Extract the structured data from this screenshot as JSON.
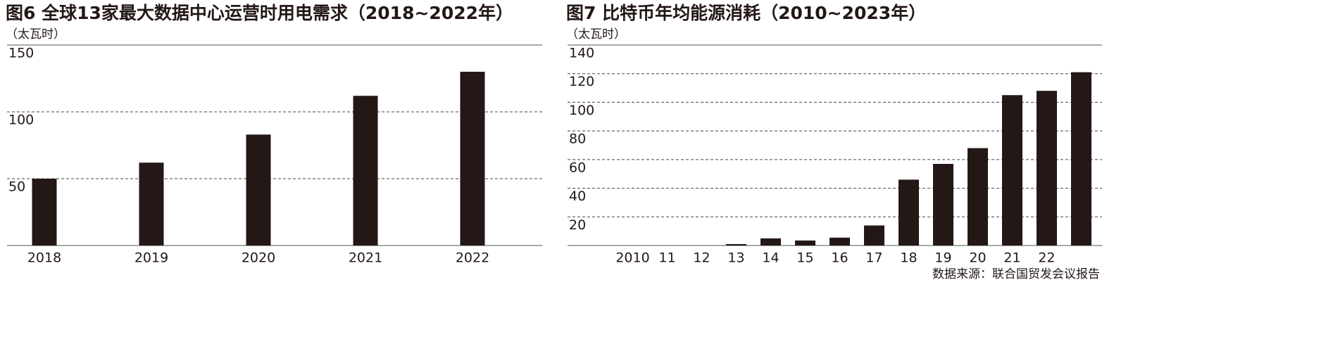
{
  "chart_data": [
    {
      "type": "bar",
      "title": "图6 全球13家最大数据中心运营时用电需求（2018~2022年）",
      "y_label": "（太瓦时）",
      "categories": [
        "2018",
        "2019",
        "2020",
        "2021",
        "2022"
      ],
      "values": [
        50,
        62,
        83,
        112,
        130
      ],
      "color": "#231815",
      "ylim": [
        0,
        150
      ],
      "yticks": [
        50,
        100,
        150
      ],
      "grid": true
    },
    {
      "type": "bar",
      "title": "图7 比特币年均能源消耗（2010~2023年）",
      "y_label": "（太瓦时）",
      "categories": [
        "2010",
        "11",
        "12",
        "13",
        "14",
        "15",
        "16",
        "17",
        "18",
        "19",
        "20",
        "21",
        "22",
        null
      ],
      "values": [
        0,
        0,
        0,
        1,
        5,
        3.5,
        5.5,
        14,
        46,
        57,
        68,
        105,
        108,
        121
      ],
      "color": "#231815",
      "ylim": [
        0,
        140
      ],
      "yticks": [
        20,
        40,
        60,
        80,
        100,
        120,
        140
      ],
      "grid": true
    }
  ],
  "source": "数据来源：联合国贸发会议报告"
}
